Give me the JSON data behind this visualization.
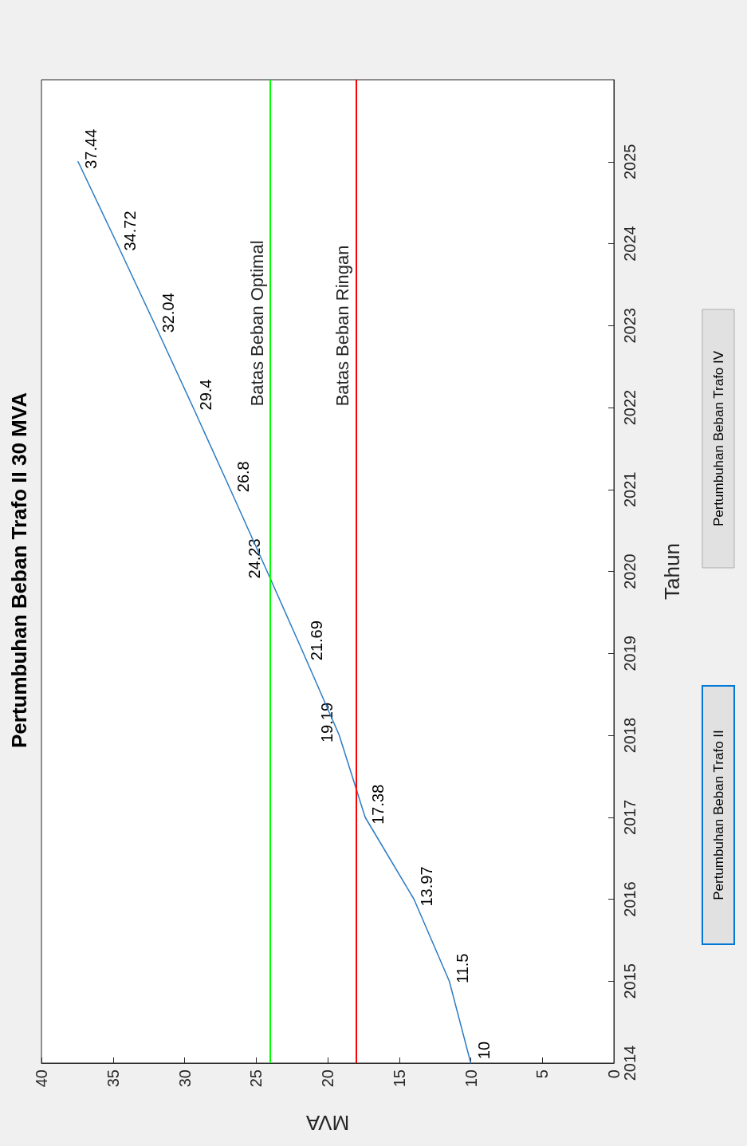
{
  "chart_data": {
    "type": "line",
    "title": "Pertumbuhan Beban Trafo II 30 MVA",
    "xlabel": "MVA",
    "ylabel": "Tahun",
    "series": [
      {
        "color": "#2b7bc4",
        "x": [
          10,
          11.5,
          13.97,
          17.38,
          19.19,
          21.69,
          24.23,
          26.8,
          29.4,
          32.04,
          34.72,
          37.44
        ],
        "values": [
          2014,
          2015,
          2016,
          2017,
          2018,
          2019,
          2020,
          2021,
          2022,
          2023,
          2024,
          2025
        ]
      }
    ],
    "xlim": [
      40,
      0
    ],
    "xticks": [
      0,
      5,
      10,
      15,
      20,
      25,
      30,
      35,
      40
    ],
    "ylim": [
      2014,
      2026
    ],
    "yticks": [
      2014,
      2015,
      2016,
      2017,
      2018,
      2019,
      2020,
      2021,
      2022,
      2023,
      2024,
      2025
    ],
    "ref_lines": [
      {
        "axis": "x",
        "value": 24,
        "label": "Batas Beban Optimal",
        "color": "#00ff00"
      },
      {
        "axis": "x",
        "value": 18,
        "label": "Batas Beban Ringan",
        "color": "#ff0000"
      }
    ],
    "annotations": [
      "Pertumbuhan Beban Trafo II",
      "Pertumbuhan Beban Trafo IV",
      {
        "text": "10",
        "x": 10,
        "y": 2014
      },
      {
        "text": "11.5",
        "x": 11.5,
        "y": 2015
      },
      {
        "text": "13.97",
        "x": 13.97,
        "y": 2016
      },
      {
        "text": "17.38",
        "x": 17.38,
        "y": 2017
      },
      {
        "text": "19.19",
        "x": 19.19,
        "y": 2018
      },
      {
        "text": "21.69",
        "x": 21.69,
        "y": 2019
      },
      {
        "text": "24.23",
        "x": 24.23,
        "y": 2020
      },
      {
        "text": "26.8",
        "x": 26.8,
        "y": 2021
      },
      {
        "text": "29.4",
        "x": 29.4,
        "y": 2022
      },
      {
        "text": "32.04",
        "x": 32.04,
        "y": 2023
      },
      {
        "text": "34.72",
        "x": 34.72,
        "y": 2024
      },
      {
        "text": "37.44",
        "x": 37.44,
        "y": 2025
      }
    ],
    "grid": false,
    "marker": "none",
    "line_style": "solid"
  }
}
